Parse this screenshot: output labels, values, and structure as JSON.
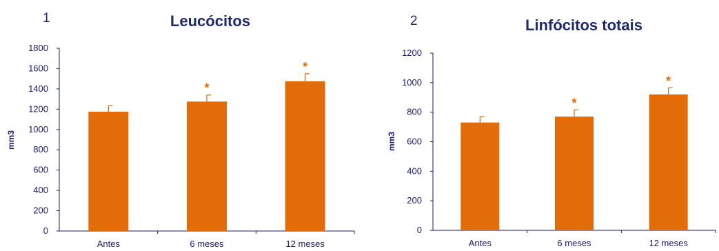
{
  "colors": {
    "bar": "#e36c0a",
    "asterisk": "#e36c0a",
    "title": "#1f2a6b",
    "axis_text": "#1a1a6e",
    "axis_line": "#1a1a6e"
  },
  "chart_data": [
    {
      "type": "bar",
      "panel_number": "1",
      "title": "Leucócitos",
      "ylabel": "mm3",
      "xlabel": "",
      "categories": [
        "Antes",
        "6 meses",
        "12 meses"
      ],
      "values": [
        1175,
        1275,
        1475
      ],
      "error": [
        60,
        65,
        75
      ],
      "significant": [
        "",
        "*",
        "*"
      ],
      "ylim": [
        0,
        1800
      ],
      "yticks": [
        0,
        200,
        400,
        600,
        800,
        1000,
        1200,
        1400,
        1600,
        1800
      ],
      "grid": false
    },
    {
      "type": "bar",
      "panel_number": "2",
      "title": "Linfócitos totais",
      "ylabel": "mm3",
      "xlabel": "",
      "categories": [
        "Antes",
        "6 meses",
        "12 meses"
      ],
      "values": [
        730,
        770,
        920
      ],
      "error": [
        40,
        45,
        45
      ],
      "significant": [
        "",
        "*",
        "*"
      ],
      "ylim": [
        0,
        1200
      ],
      "yticks": [
        0,
        200,
        400,
        600,
        800,
        1000,
        1200
      ],
      "grid": false
    }
  ]
}
